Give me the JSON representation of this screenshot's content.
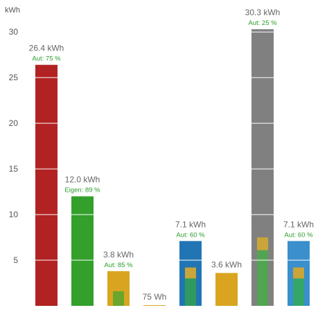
{
  "chart_data": {
    "type": "bar",
    "ylabel": "kWh",
    "ylim": [
      0,
      31
    ],
    "yticks": [
      5,
      10,
      15,
      20,
      25,
      30
    ],
    "grid": true,
    "bars": [
      {
        "value": 26.4,
        "label": "26.4 kWh",
        "sublabel": "Aut: 75 %",
        "color": "#b22222",
        "inner": []
      },
      {
        "value": 12.0,
        "label": "12.0 kWh",
        "sublabel": "Eigen: 89 %",
        "color": "#33a02c",
        "inner": []
      },
      {
        "value": 3.8,
        "label": "3.8 kWh",
        "sublabel": "Aut: 85 %",
        "color": "#d9a520",
        "inner": [
          {
            "from": 0,
            "to": 1.6,
            "color": "#6aa52c"
          }
        ]
      },
      {
        "value": 0.075,
        "label": "75 Wh",
        "sublabel": "",
        "color": "#d9a520",
        "inner": []
      },
      {
        "value": 7.1,
        "label": "7.1 kWh",
        "sublabel": "Aut: 60 %",
        "color": "#2275b4",
        "inner": [
          {
            "from": 0,
            "to": 3.0,
            "color": "#2f9a5f"
          },
          {
            "from": 3.0,
            "to": 4.2,
            "color": "#c9a53a"
          }
        ]
      },
      {
        "value": 3.6,
        "label": "3.6 kWh",
        "sublabel": "",
        "color": "#d9a520",
        "inner": []
      },
      {
        "value": 30.3,
        "label": "30.3 kWh",
        "sublabel": "Aut: 25 %",
        "color": "#808080",
        "inner": [
          {
            "from": 0,
            "to": 6.1,
            "color": "#52a352"
          },
          {
            "from": 6.1,
            "to": 7.5,
            "color": "#c9a53a"
          }
        ]
      },
      {
        "value": 7.1,
        "label": "7.1 kWh",
        "sublabel": "Aut: 60 %",
        "color": "#3a8fcc",
        "inner": [
          {
            "from": 0,
            "to": 3.0,
            "color": "#34a66a"
          },
          {
            "from": 3.0,
            "to": 4.2,
            "color": "#c9a53a"
          }
        ]
      }
    ]
  }
}
